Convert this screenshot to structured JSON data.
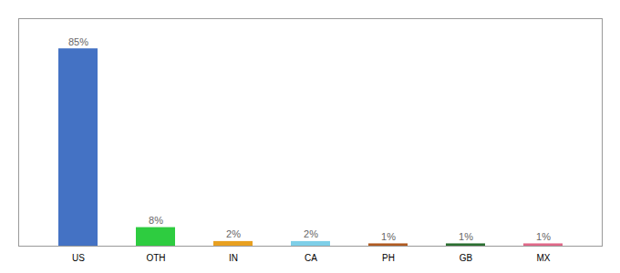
{
  "chart_data": {
    "type": "bar",
    "categories": [
      "US",
      "OTH",
      "IN",
      "CA",
      "PH",
      "GB",
      "MX"
    ],
    "values": [
      85,
      8,
      2,
      2,
      1,
      1,
      1
    ],
    "value_labels": [
      "85%",
      "8%",
      "2%",
      "2%",
      "1%",
      "1%",
      "1%"
    ],
    "colors": [
      "#4472c4",
      "#2ecc40",
      "#e8a020",
      "#7ecfe8",
      "#b05a20",
      "#2a6e30",
      "#e06888"
    ],
    "ylim": [
      0,
      98
    ],
    "data_labels": true,
    "tick_labels": "x",
    "grid": false
  }
}
